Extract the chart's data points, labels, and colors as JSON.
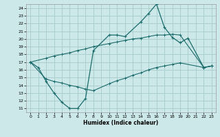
{
  "xlabel": "Humidex (Indice chaleur)",
  "bg_color": "#cce8e8",
  "grid_color": "#aacfcf",
  "line_color": "#1a6b6b",
  "xlim": [
    -0.5,
    23.5
  ],
  "ylim": [
    10.5,
    24.5
  ],
  "xticks": [
    0,
    1,
    2,
    3,
    4,
    5,
    6,
    7,
    8,
    9,
    10,
    11,
    12,
    13,
    14,
    15,
    16,
    17,
    18,
    19,
    20,
    21,
    22,
    23
  ],
  "yticks": [
    11,
    12,
    13,
    14,
    15,
    16,
    17,
    18,
    19,
    20,
    21,
    22,
    23,
    24
  ],
  "line1_x": [
    0,
    1,
    2,
    3,
    4,
    5,
    6,
    7,
    8,
    10,
    11,
    12,
    14,
    15,
    16,
    17,
    18,
    19,
    20,
    22,
    23
  ],
  "line1_y": [
    17.0,
    16.3,
    14.5,
    13.0,
    11.8,
    11.0,
    11.0,
    12.3,
    18.5,
    20.5,
    20.5,
    20.3,
    22.2,
    23.3,
    24.5,
    21.5,
    20.2,
    19.5,
    20.1,
    16.3,
    16.5
  ],
  "line2_x": [
    0,
    2,
    3,
    4,
    5,
    6,
    7,
    8,
    10,
    11,
    12,
    13,
    14,
    15,
    16,
    17,
    18,
    19,
    22,
    23
  ],
  "line2_y": [
    17.0,
    17.5,
    17.8,
    18.0,
    18.2,
    18.5,
    18.7,
    19.0,
    19.4,
    19.6,
    19.8,
    20.0,
    20.1,
    20.3,
    20.5,
    20.5,
    20.6,
    20.5,
    16.3,
    16.5
  ],
  "line3_x": [
    0,
    2,
    3,
    4,
    5,
    6,
    7,
    8,
    10,
    11,
    12,
    13,
    14,
    15,
    16,
    17,
    18,
    19,
    22,
    23
  ],
  "line3_y": [
    17.0,
    14.8,
    14.5,
    14.3,
    14.0,
    13.8,
    13.5,
    13.3,
    14.2,
    14.6,
    14.9,
    15.3,
    15.6,
    16.0,
    16.3,
    16.5,
    16.7,
    16.9,
    16.3,
    16.5
  ]
}
